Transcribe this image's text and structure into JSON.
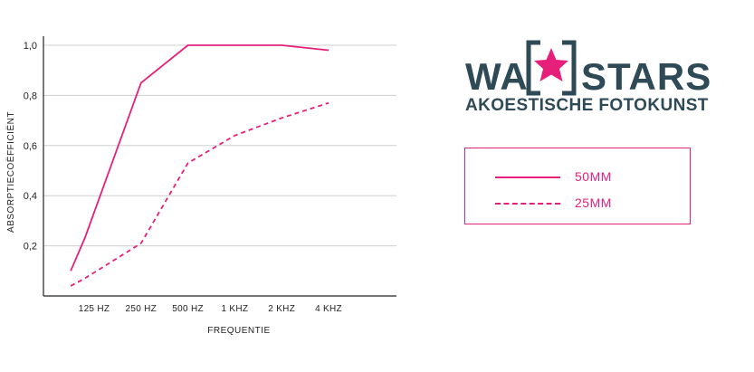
{
  "chart_data": {
    "type": "line",
    "x_categories": [
      "125 HZ",
      "250 HZ",
      "500 HZ",
      "1 KHZ",
      "2 KHZ",
      "4 KHZ"
    ],
    "xlabel": "FREQUENTIE",
    "ylabel": "ABSORPTIECOËFFICIËNT",
    "ylim": [
      0,
      1.0
    ],
    "yticks": [
      "0,2",
      "0,4",
      "0,6",
      "0,8",
      "1,0"
    ],
    "ytick_values": [
      0.2,
      0.4,
      0.6,
      0.8,
      1.0
    ],
    "grid": true,
    "series": [
      {
        "name": "50MM",
        "style": "solid",
        "color": "#e6207a",
        "x": [
          -0.5,
          -0.2,
          1.0,
          2.0,
          3.0,
          4.0,
          5.0
        ],
        "y": [
          0.1,
          0.23,
          0.85,
          1.0,
          1.0,
          1.0,
          0.98
        ]
      },
      {
        "name": "25MM",
        "style": "dashed",
        "color": "#e6207a",
        "x": [
          -0.5,
          -0.2,
          1.0,
          2.0,
          3.0,
          4.0,
          5.0
        ],
        "y": [
          0.04,
          0.07,
          0.21,
          0.53,
          0.64,
          0.71,
          0.77
        ]
      }
    ]
  },
  "logo": {
    "word_left": "WA",
    "word_right": "STARS",
    "tagline": "AKOESTISCHE FOTOKUNST",
    "frame_color": "#2f4a57",
    "star_color": "#e6207a"
  },
  "legend": {
    "items": [
      {
        "label": "50MM",
        "style": "solid"
      },
      {
        "label": "25MM",
        "style": "dashed"
      }
    ],
    "border_color": "#e6207a"
  }
}
